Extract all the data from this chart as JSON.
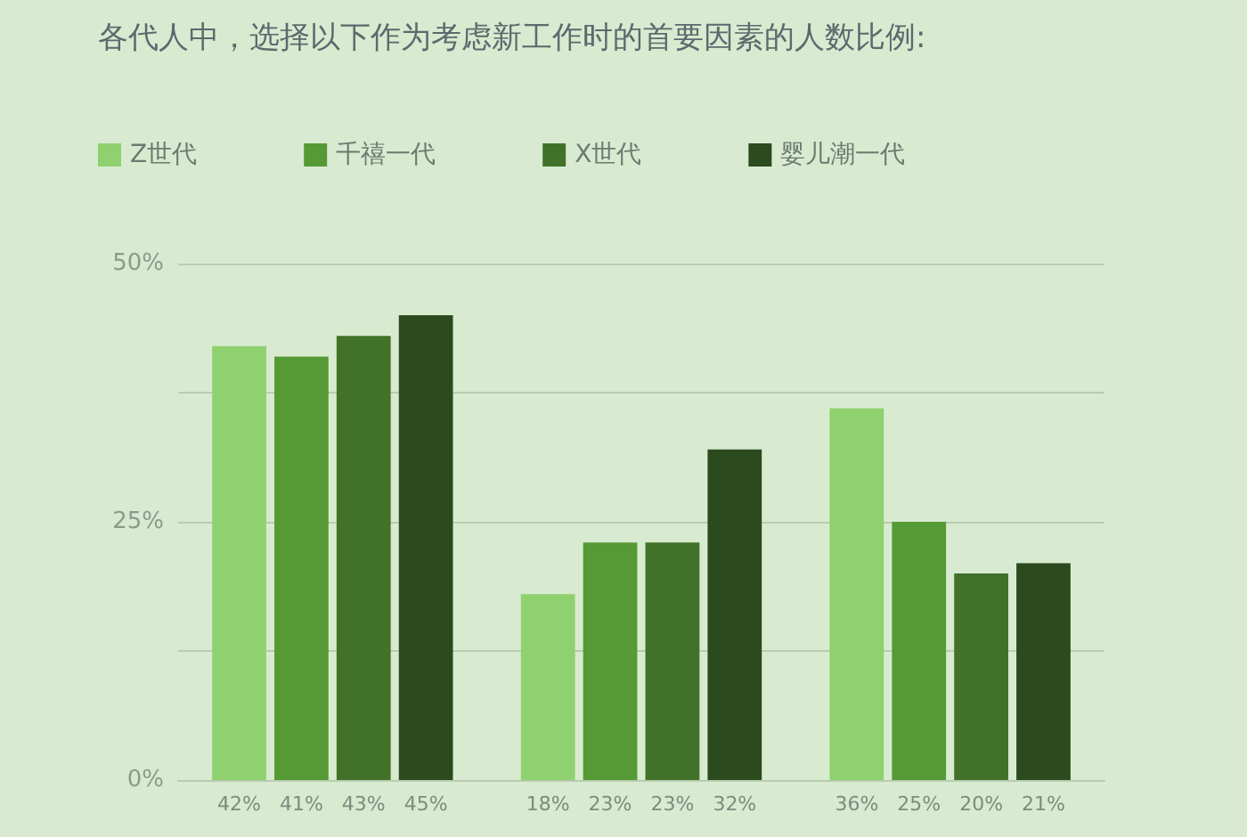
{
  "chart_data": {
    "type": "bar",
    "title": "各代人中，选择以下作为考虑新工作时的首要因素的人数比例:",
    "categories": [
      null,
      null,
      null
    ],
    "series": [
      {
        "name": "Z世代",
        "color": "#8fd16e",
        "values": [
          42,
          18,
          36
        ],
        "value_labels": [
          "42%",
          "18%",
          "36%"
        ]
      },
      {
        "name": "千禧一代",
        "color": "#559a35",
        "values": [
          41,
          23,
          25
        ],
        "value_labels": [
          "41%",
          "23%",
          "25%"
        ]
      },
      {
        "name": "X世代",
        "color": "#427229",
        "values": [
          43,
          23,
          20
        ],
        "value_labels": [
          "43%",
          "23%",
          "20%"
        ]
      },
      {
        "name": "婴儿潮一代",
        "color": "#2b4a1e",
        "values": [
          45,
          32,
          21
        ],
        "value_labels": [
          "45%",
          "32%",
          "21%"
        ]
      }
    ],
    "ylim": [
      0,
      50
    ],
    "yticks": [
      {
        "value": 0,
        "label": "0%"
      },
      {
        "value": 12.5,
        "label": null
      },
      {
        "value": 25,
        "label": "25%"
      },
      {
        "value": 37.5,
        "label": null
      },
      {
        "value": 50,
        "label": "50%"
      }
    ],
    "grid": "y",
    "legend": "top left"
  }
}
